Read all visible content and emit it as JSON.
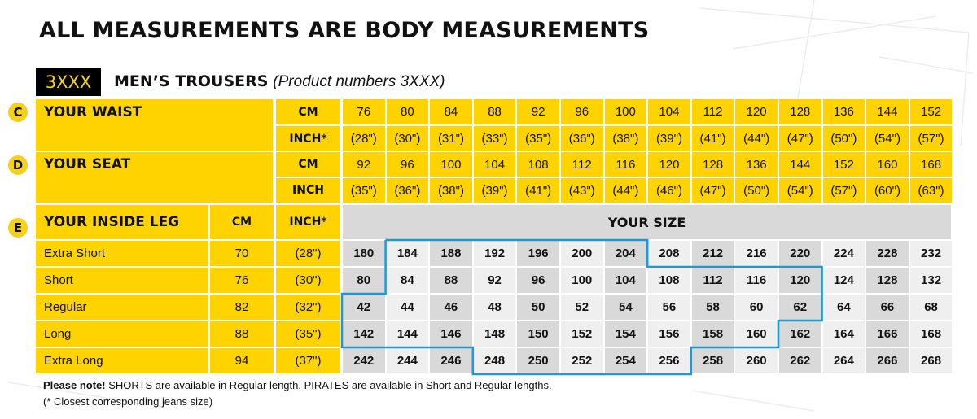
{
  "title": "ALL MEASUREMENTS ARE BODY MEASUREMENTS",
  "badge": "3XXX",
  "subtitle": {
    "main": "MEN’S TROUSERS",
    "detail": "(Product numbers 3XXX)"
  },
  "waist": {
    "letter": "C",
    "label": "YOUR WAIST",
    "cm_label": "CM",
    "inch_label": "INCH*",
    "cm": [
      "76",
      "80",
      "84",
      "88",
      "92",
      "96",
      "100",
      "104",
      "112",
      "120",
      "128",
      "136",
      "144",
      "152"
    ],
    "inch": [
      "(28\")",
      "(30\")",
      "(31\")",
      "(33\")",
      "(35\")",
      "(36\")",
      "(38\")",
      "(39\")",
      "(41\")",
      "(44\")",
      "(47\")",
      "(50\")",
      "(54\")",
      "(57\")"
    ]
  },
  "seat": {
    "letter": "D",
    "label": "YOUR SEAT",
    "cm_label": "CM",
    "inch_label": "INCH",
    "cm": [
      "92",
      "96",
      "100",
      "104",
      "108",
      "112",
      "116",
      "120",
      "128",
      "136",
      "144",
      "152",
      "160",
      "168"
    ],
    "inch": [
      "(35\")",
      "(36\")",
      "(38\")",
      "(39\")",
      "(41\")",
      "(43\")",
      "(44\")",
      "(46\")",
      "(47\")",
      "(50\")",
      "(54\")",
      "(57\")",
      "(60\")",
      "(63\")"
    ]
  },
  "leg": {
    "letter": "E",
    "label": "YOUR INSIDE LEG",
    "cm_label": "CM",
    "inch_label": "INCH*",
    "size_header": "YOUR SIZE",
    "rows": [
      {
        "name": "Extra Short",
        "cm": "70",
        "inch": "(28\")",
        "sizes": [
          "180",
          "184",
          "188",
          "192",
          "196",
          "200",
          "204",
          "208",
          "212",
          "216",
          "220",
          "224",
          "228",
          "232"
        ]
      },
      {
        "name": "Short",
        "cm": "76",
        "inch": "(30\")",
        "sizes": [
          "80",
          "84",
          "88",
          "92",
          "96",
          "100",
          "104",
          "108",
          "112",
          "116",
          "120",
          "124",
          "128",
          "132"
        ]
      },
      {
        "name": "Regular",
        "cm": "82",
        "inch": "(32\")",
        "sizes": [
          "42",
          "44",
          "46",
          "48",
          "50",
          "52",
          "54",
          "56",
          "58",
          "60",
          "62",
          "64",
          "66",
          "68"
        ]
      },
      {
        "name": "Long",
        "cm": "88",
        "inch": "(35\")",
        "sizes": [
          "142",
          "144",
          "146",
          "148",
          "150",
          "152",
          "154",
          "156",
          "158",
          "160",
          "162",
          "164",
          "166",
          "168"
        ]
      },
      {
        "name": "Extra Long",
        "cm": "94",
        "inch": "(37\")",
        "sizes": [
          "242",
          "244",
          "246",
          "248",
          "250",
          "252",
          "254",
          "256",
          "258",
          "260",
          "262",
          "264",
          "266",
          "268"
        ]
      }
    ]
  },
  "notes": {
    "bold": "Please note!",
    "text": " SHORTS are available in Regular length. PIRATES are available in Short and Regular lengths.",
    "line2": "(* Closest corresponding jeans size)"
  },
  "colors": {
    "yellow": "#fed300",
    "grey_dark": "#d9d9d9",
    "grey_light": "#efefef",
    "outline": "#1c9ad6"
  }
}
